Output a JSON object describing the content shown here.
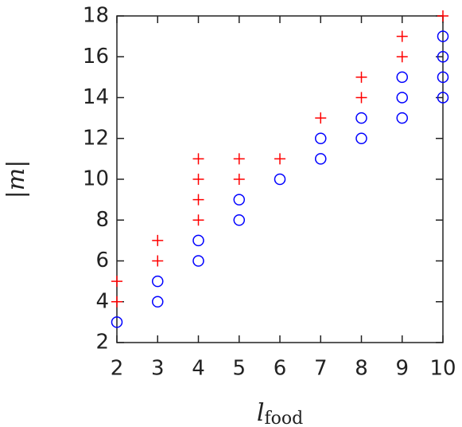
{
  "chart_data": {
    "type": "scatter",
    "xlabel": "l",
    "xlabel_subscript": "food",
    "ylabel": "|m|",
    "xlim": [
      2,
      10
    ],
    "xticks": [
      2,
      3,
      4,
      5,
      6,
      7,
      8,
      9,
      10
    ],
    "ylim": [
      2,
      18
    ],
    "yticks": [
      2,
      4,
      6,
      8,
      10,
      12,
      14,
      16,
      18
    ],
    "series": [
      {
        "color": "#ff0000",
        "marker": "plus",
        "x": [
          2,
          2,
          3,
          3,
          4,
          4,
          4,
          4,
          5,
          5,
          6,
          7,
          8,
          8,
          9,
          9,
          10
        ],
        "y": [
          4,
          5,
          6,
          7,
          8,
          9,
          10,
          11,
          10,
          11,
          11,
          13,
          14,
          15,
          16,
          17,
          18
        ]
      },
      {
        "color": "#0000ff",
        "marker": "circle",
        "x": [
          2,
          3,
          3,
          4,
          4,
          5,
          5,
          6,
          7,
          7,
          8,
          8,
          9,
          9,
          9,
          10,
          10,
          10,
          10
        ],
        "y": [
          3,
          4,
          5,
          6,
          7,
          8,
          9,
          10,
          11,
          12,
          12,
          13,
          13,
          14,
          15,
          14,
          15,
          16,
          17
        ]
      }
    ]
  }
}
